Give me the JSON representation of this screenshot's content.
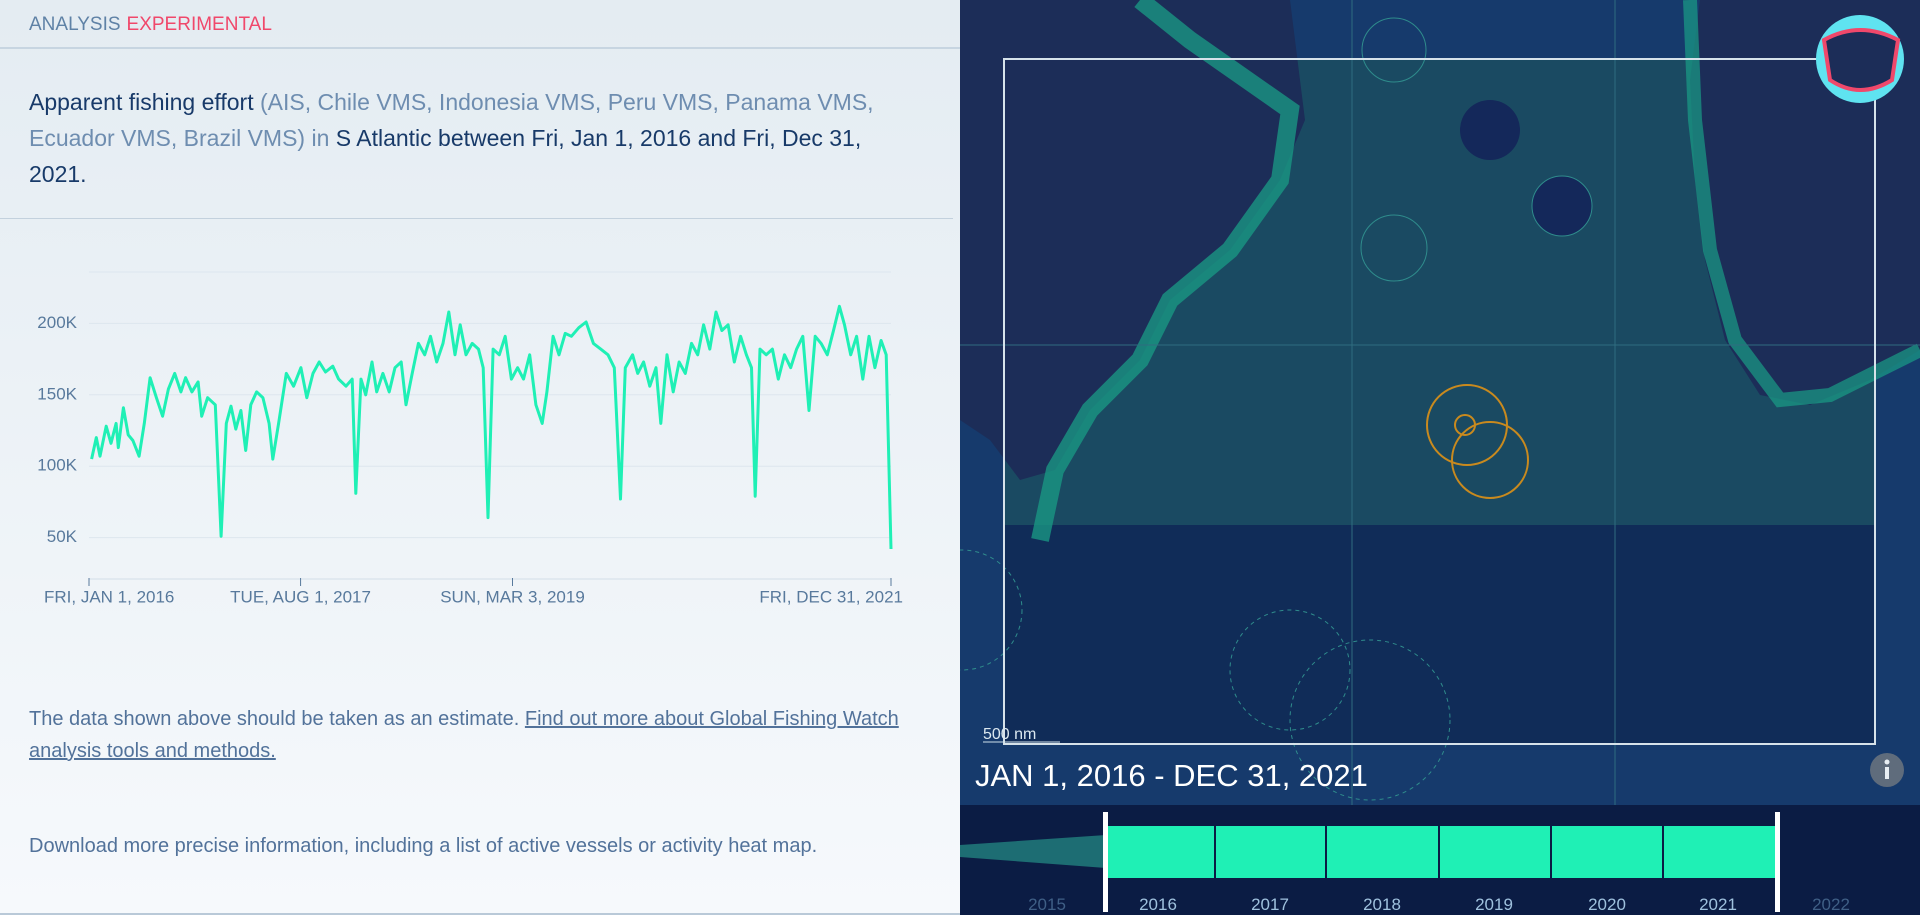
{
  "header": {
    "label": "ANALYSIS",
    "status": "EXPERIMENTAL"
  },
  "summary": {
    "metric": "Apparent fishing effort",
    "sources": "(AIS, Chile VMS, Indonesia VMS, Peru VMS, Panama VMS, Ecuador VMS, Brazil VMS)",
    "connector": "in",
    "area_and_dates": "S Atlantic between Fri, Jan 1, 2016 and Fri, Dec 31, 2021."
  },
  "chart_data": {
    "type": "line",
    "color": "#1ff0b5",
    "grid": true,
    "x": [
      "2016-01-08",
      "2016-01-21",
      "2016-01-31",
      "2016-02-17",
      "2016-03-01",
      "2016-03-15",
      "2016-03-21",
      "2016-04-04",
      "2016-04-17",
      "2016-04-30",
      "2016-05-17",
      "2016-05-31",
      "2016-06-16",
      "2016-07-03",
      "2016-07-20",
      "2016-08-05",
      "2016-08-22",
      "2016-09-08",
      "2016-09-21",
      "2016-10-08",
      "2016-10-25",
      "2016-11-04",
      "2016-11-20",
      "2016-12-11",
      "2016-12-27",
      "2017-01-10",
      "2017-01-23",
      "2017-02-05",
      "2017-02-19",
      "2017-03-04",
      "2017-03-18",
      "2017-04-03",
      "2017-04-20",
      "2017-05-07",
      "2017-05-17",
      "2017-06-02",
      "2017-06-23",
      "2017-07-13",
      "2017-08-02",
      "2017-08-18",
      "2017-09-04",
      "2017-09-21",
      "2017-10-08",
      "2017-10-28",
      "2017-11-13",
      "2017-12-03",
      "2017-12-20",
      "2017-12-30",
      "2018-01-13",
      "2018-01-26",
      "2018-02-12",
      "2018-02-25",
      "2018-03-14",
      "2018-03-31",
      "2018-04-16",
      "2018-05-03",
      "2018-05-16",
      "2018-06-02",
      "2018-06-19",
      "2018-07-06",
      "2018-07-22",
      "2018-08-08",
      "2018-08-25",
      "2018-09-10",
      "2018-09-27",
      "2018-10-11",
      "2018-10-27",
      "2018-11-13",
      "2018-11-30",
      "2018-12-13",
      "2018-12-26",
      "2019-01-09",
      "2019-01-26",
      "2019-02-11",
      "2019-02-28",
      "2019-03-17",
      "2019-04-02",
      "2019-04-19",
      "2019-05-06",
      "2019-05-23",
      "2019-06-05",
      "2019-06-22",
      "2019-07-08",
      "2019-07-25",
      "2019-08-11",
      "2019-08-31",
      "2019-09-20",
      "2019-10-10",
      "2019-10-30",
      "2019-11-19",
      "2019-12-06",
      "2019-12-23",
      "2020-01-05",
      "2020-01-25",
      "2020-02-08",
      "2020-02-24",
      "2020-03-12",
      "2020-03-29",
      "2020-04-11",
      "2020-04-28",
      "2020-05-15",
      "2020-05-31",
      "2020-06-17",
      "2020-07-04",
      "2020-07-21",
      "2020-08-06",
      "2020-08-23",
      "2020-09-09",
      "2020-09-25",
      "2020-10-12",
      "2020-10-29",
      "2020-11-15",
      "2020-12-01",
      "2020-12-15",
      "2020-12-25",
      "2021-01-07",
      "2021-01-24",
      "2021-02-10",
      "2021-02-26",
      "2021-03-15",
      "2021-04-01",
      "2021-04-17",
      "2021-05-04",
      "2021-05-21",
      "2021-06-07",
      "2021-06-23",
      "2021-07-10",
      "2021-07-27",
      "2021-08-12",
      "2021-08-26",
      "2021-09-12",
      "2021-09-28",
      "2021-10-15",
      "2021-11-01",
      "2021-11-17",
      "2021-12-04",
      "2021-12-18",
      "2021-12-31"
    ],
    "values": [
      105000,
      120000,
      107000,
      128000,
      116000,
      130000,
      113000,
      141000,
      122000,
      118000,
      107000,
      130000,
      162000,
      148000,
      135000,
      154000,
      165000,
      152000,
      162000,
      152000,
      159000,
      135000,
      148000,
      143000,
      51000,
      130000,
      142000,
      126000,
      139000,
      111000,
      143000,
      152000,
      148000,
      130000,
      105000,
      130000,
      165000,
      156000,
      169000,
      148000,
      165000,
      173000,
      166000,
      170000,
      161000,
      156000,
      161000,
      81000,
      161000,
      150000,
      173000,
      152000,
      165000,
      152000,
      169000,
      173000,
      143000,
      165000,
      186000,
      178000,
      191000,
      173000,
      186000,
      208000,
      178000,
      199000,
      178000,
      186000,
      182000,
      169000,
      64000,
      182000,
      178000,
      191000,
      161000,
      169000,
      161000,
      178000,
      143000,
      130000,
      152000,
      191000,
      178000,
      193000,
      191000,
      197000,
      201000,
      186000,
      182000,
      178000,
      169000,
      77000,
      169000,
      178000,
      165000,
      173000,
      156000,
      169000,
      130000,
      178000,
      152000,
      173000,
      165000,
      186000,
      178000,
      199000,
      182000,
      208000,
      195000,
      199000,
      173000,
      191000,
      178000,
      169000,
      79000,
      182000,
      178000,
      182000,
      161000,
      178000,
      169000,
      182000,
      191000,
      139000,
      191000,
      186000,
      178000,
      195000,
      212000,
      199000,
      178000,
      191000,
      161000,
      191000,
      169000,
      188000,
      178000,
      42000
    ],
    "xlim": [
      "2016-01-01",
      "2021-12-31"
    ],
    "xticks": [
      {
        "value": "2016-01-01",
        "label": "FRI, JAN 1, 2016"
      },
      {
        "value": "2017-08-01",
        "label": "TUE, AUG 1, 2017"
      },
      {
        "value": "2019-03-03",
        "label": "SUN, MAR 3, 2019"
      },
      {
        "value": "2021-12-31",
        "label": "FRI, DEC 31, 2021"
      }
    ],
    "ylim": [
      21000,
      236000
    ],
    "yticks": [
      {
        "value": 50000,
        "label": "50K"
      },
      {
        "value": 100000,
        "label": "100K"
      },
      {
        "value": 150000,
        "label": "150K"
      },
      {
        "value": 200000,
        "label": "200K"
      }
    ]
  },
  "notes": {
    "disclaimer": "The data shown above should be taken as an estimate.",
    "link": "Find out more about Global Fishing Watch analysis tools and methods."
  },
  "download": "Download more precise information, including a list of active vessels or activity heat map.",
  "map": {
    "scale": "500 nm",
    "date_range": "JAN 1, 2016 - DEC 31, 2021"
  },
  "timebar": {
    "years": [
      "2015",
      "2016",
      "2017",
      "2018",
      "2019",
      "2020",
      "2021",
      "2022"
    ]
  }
}
